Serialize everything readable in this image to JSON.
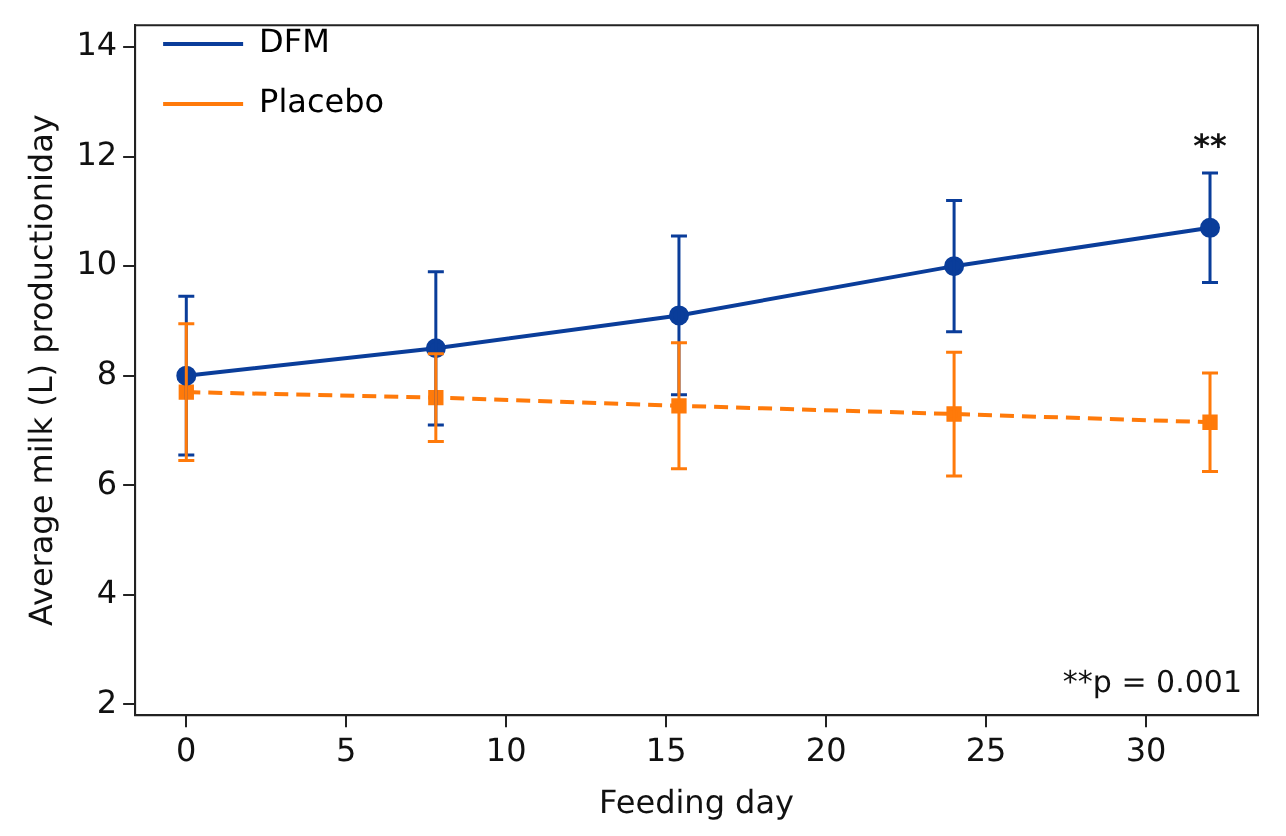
{
  "chart_data": {
    "type": "line",
    "xlabel": "Feeding day",
    "ylabel": "Average milk (L) productioniday",
    "x": [
      0,
      7.8,
      15.4,
      24,
      32
    ],
    "xlim": [
      -1.6,
      33.5
    ],
    "xticks": [
      0,
      5,
      10,
      15,
      20,
      25,
      30
    ],
    "ylim": [
      1.8,
      14.4
    ],
    "yticks": [
      2,
      4,
      6,
      8,
      10,
      12,
      14
    ],
    "legend": "top left",
    "grid": false,
    "series": [
      {
        "name": "DFM",
        "color": "#0a3d9a",
        "values": [
          8.0,
          8.5,
          9.1,
          10.0,
          10.7
        ],
        "errors": [
          1.45,
          1.4,
          1.45,
          1.2,
          1.0
        ],
        "marker": "circle",
        "line_style": "solid"
      },
      {
        "name": "Placebo",
        "color": "#ff7a0a",
        "values": [
          7.7,
          7.6,
          7.45,
          7.3,
          7.15
        ],
        "errors": [
          1.25,
          0.8,
          1.15,
          1.13,
          0.9
        ],
        "marker": "square",
        "line_style": "dashed"
      }
    ],
    "annotations": [
      "**",
      "**p = 0.001"
    ]
  }
}
